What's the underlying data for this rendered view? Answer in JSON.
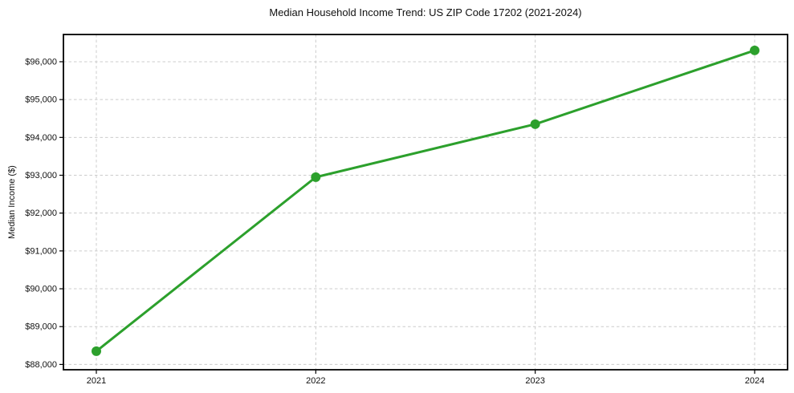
{
  "chart_data": {
    "type": "line",
    "title": "Median Household Income Trend: US ZIP Code 17202 (2021-2024)",
    "xlabel": "",
    "ylabel": "Median Income ($)",
    "x": [
      2021,
      2022,
      2023,
      2024
    ],
    "values": [
      88350,
      92950,
      94350,
      96300
    ],
    "x_tick_labels": [
      "2021",
      "2022",
      "2023",
      "2024"
    ],
    "y_ticks": [
      88000,
      89000,
      90000,
      91000,
      92000,
      93000,
      94000,
      95000,
      96000
    ],
    "y_tick_labels": [
      "$88,000",
      "$89,000",
      "$90,000",
      "$91,000",
      "$92,000",
      "$93,000",
      "$94,000",
      "$95,000",
      "$96,000"
    ],
    "xlim": [
      2020.85,
      2024.15
    ],
    "ylim": [
      87860,
      96720
    ],
    "grid": true,
    "grid_style": "dashed",
    "legend": false,
    "colors": {
      "line": "#2ca02c",
      "marker": "#2ca02c",
      "grid": "#cccccc",
      "spine": "#000000",
      "text": "#111111",
      "background": "#ffffff"
    }
  }
}
